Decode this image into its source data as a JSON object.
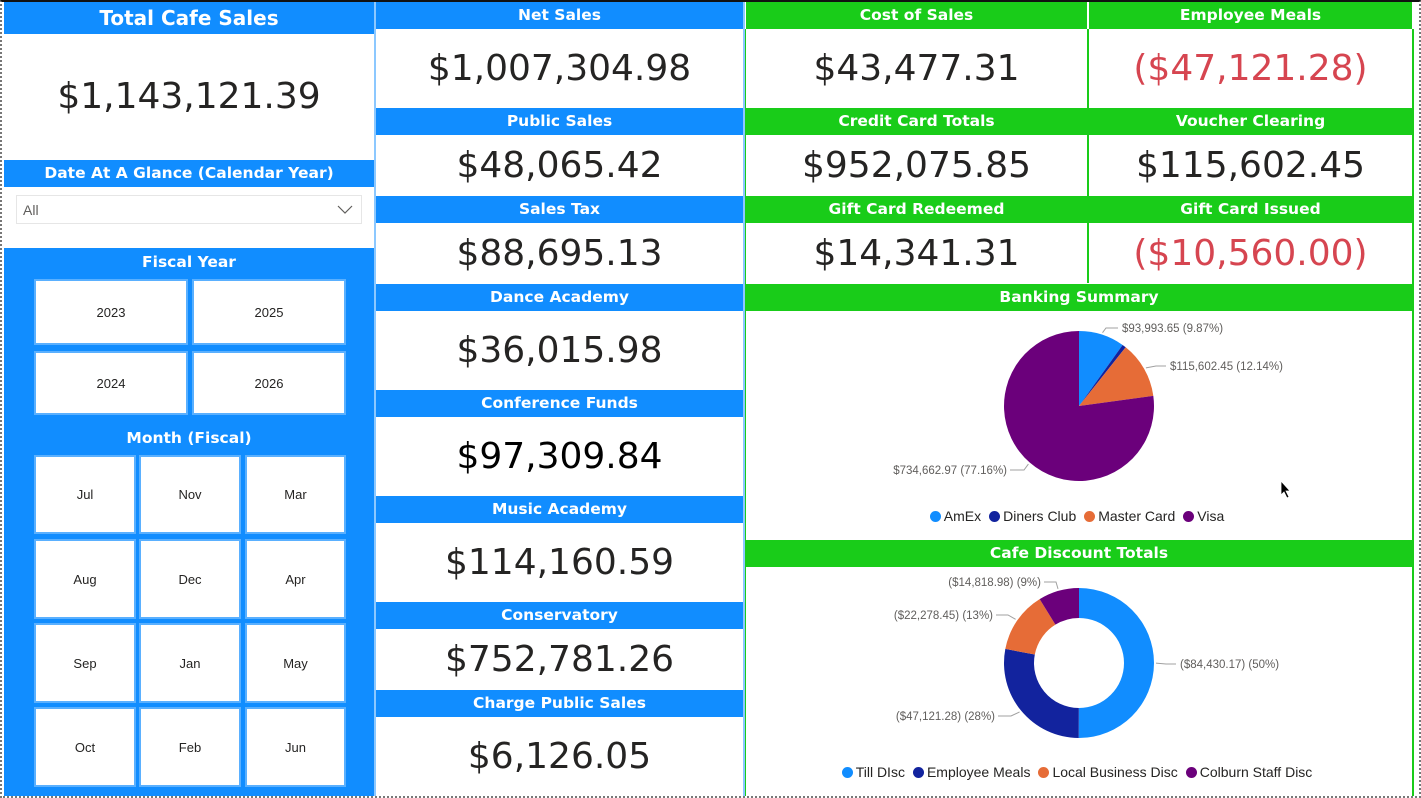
{
  "colors": {
    "blue_header": "#118DFF",
    "green_header": "#19CC19",
    "negative": "#D64550",
    "text": "#252423"
  },
  "left": {
    "total_title": "Total Cafe Sales",
    "total_value": "$1,143,121.39",
    "date_title": "Date At A Glance (Calendar Year)",
    "date_dropdown_value": "All",
    "fiscal_year_title": "Fiscal Year",
    "fiscal_years": [
      "2023",
      "2025",
      "2024",
      "2026"
    ],
    "month_title": "Month (Fiscal)",
    "months": [
      "Jul",
      "Nov",
      "Mar",
      "Aug",
      "Dec",
      "Apr",
      "Sep",
      "Jan",
      "May",
      "Oct",
      "Feb",
      "Jun"
    ]
  },
  "middle": [
    {
      "title": "Net Sales",
      "value": "$1,007,304.98"
    },
    {
      "title": "Public Sales",
      "value": "$48,065.42"
    },
    {
      "title": "Sales Tax",
      "value": "$88,695.13"
    },
    {
      "title": "Dance Academy",
      "value": "$36,015.98"
    },
    {
      "title": "Conference Funds",
      "value": "$97,309.84"
    },
    {
      "title": "Music Academy",
      "value": "$114,160.59"
    },
    {
      "title": "Conservatory",
      "value": "$752,781.26"
    },
    {
      "title": "Charge Public Sales",
      "value": "$6,126.05"
    }
  ],
  "right": [
    {
      "title": "Cost of Sales",
      "value": "$43,477.31",
      "negative": false
    },
    {
      "title": "Employee Meals",
      "value": "($47,121.28)",
      "negative": true
    },
    {
      "title": "Credit Card Totals",
      "value": "$952,075.85",
      "negative": false
    },
    {
      "title": "Voucher Clearing",
      "value": "$115,602.45",
      "negative": false
    },
    {
      "title": "Gift Card Redeemed",
      "value": "$14,341.31",
      "negative": false
    },
    {
      "title": "Gift Card Issued",
      "value": "($10,560.00)",
      "negative": true
    }
  ],
  "chart_data": [
    {
      "type": "pie",
      "title": "Banking Summary",
      "categories": [
        "AmEx",
        "Diners Club",
        "Master Card",
        "Visa"
      ],
      "values": [
        93993.65,
        7816.78,
        115602.45,
        734662.97
      ],
      "colors": [
        "#118DFF",
        "#12239E",
        "#E66C37",
        "#6B007B"
      ],
      "data_labels": [
        "$93,993.65 (9.87%)",
        "",
        "$115,602.45 (12.14%)",
        "$734,662.97 (77.16%)"
      ],
      "legend": "bottom-center"
    },
    {
      "type": "pie",
      "subtype": "donut",
      "title": "Cafe Discount Totals",
      "categories": [
        "Till DIsc",
        "Employee Meals",
        "Local Business Disc",
        "Colburn Staff Disc"
      ],
      "values": [
        -84430.17,
        -47121.28,
        -22278.45,
        -14818.98
      ],
      "colors": [
        "#118DFF",
        "#12239E",
        "#E66C37",
        "#6B007B"
      ],
      "data_labels": [
        "($84,430.17) (50%)",
        "($47,121.28) (28%)",
        "($22,278.45) (13%)",
        "($14,818.98) (9%)"
      ],
      "legend": "bottom-center"
    }
  ]
}
